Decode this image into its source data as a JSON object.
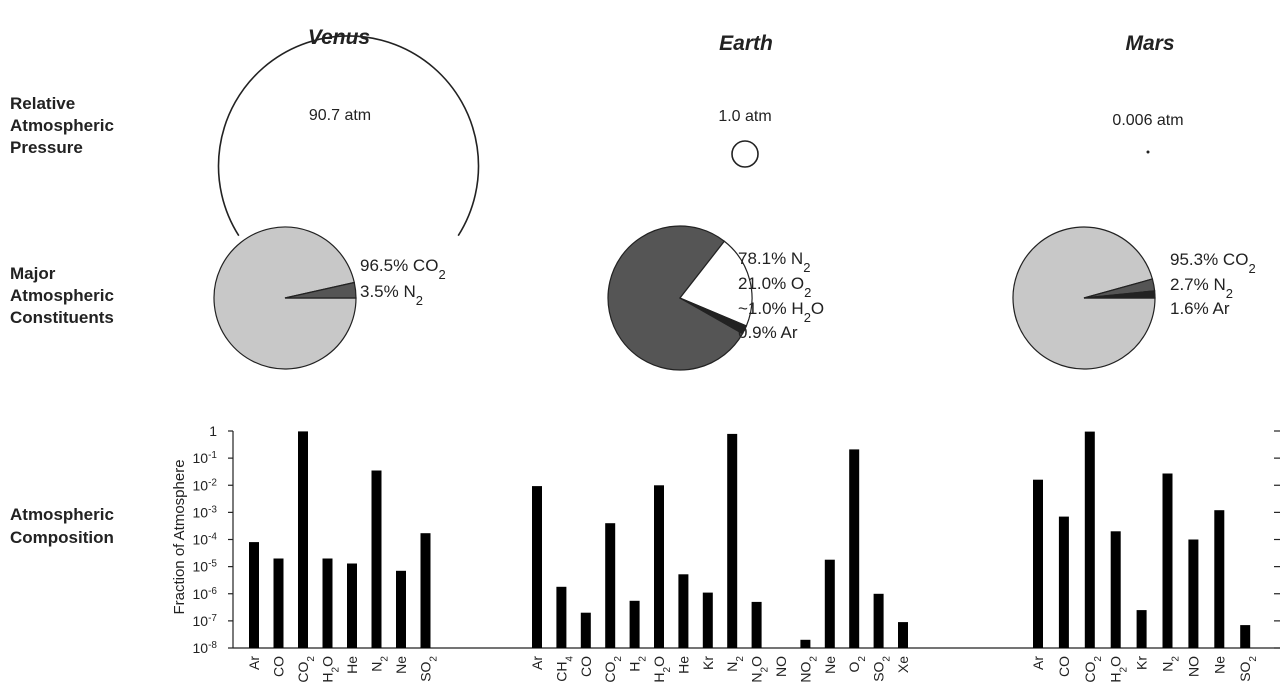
{
  "row_labels": {
    "pressure": [
      "Relative",
      "Atmospheric",
      "Pressure"
    ],
    "constituents": [
      "Major",
      "Atmospheric",
      "Constituents"
    ],
    "composition": [
      "Atmospheric",
      "Composition"
    ]
  },
  "ylabel": "Fraction of Atmosphere",
  "ytick_labels": [
    {
      "base": "1",
      "exp": ""
    },
    {
      "base": "10",
      "exp": "-1"
    },
    {
      "base": "10",
      "exp": "-2"
    },
    {
      "base": "10",
      "exp": "-3"
    },
    {
      "base": "10",
      "exp": "-4"
    },
    {
      "base": "10",
      "exp": "-5"
    },
    {
      "base": "10",
      "exp": "-6"
    },
    {
      "base": "10",
      "exp": "-7"
    },
    {
      "base": "10",
      "exp": "-8"
    }
  ],
  "colors": {
    "co2": "#c8c8c8",
    "n2": "#555555",
    "o2": "#ffffff",
    "minor": "#222222",
    "bar": "#000000"
  },
  "chart_data": [
    {
      "type": "pie",
      "planet": "Venus",
      "pressure_label": "90.7 atm",
      "pressure_atm": 90.7,
      "slices": [
        {
          "name": "CO2",
          "value": 96.5,
          "label": [
            {
              "t": "96.5% CO"
            },
            {
              "t": "2",
              "sub": true
            }
          ]
        },
        {
          "name": "N2",
          "value": 3.5,
          "label": [
            {
              "t": "3.5% N"
            },
            {
              "t": "2",
              "sub": true
            }
          ]
        }
      ]
    },
    {
      "type": "pie",
      "planet": "Earth",
      "pressure_label": "1.0 atm",
      "pressure_atm": 1.0,
      "slices": [
        {
          "name": "N2",
          "value": 78.1,
          "label": [
            {
              "t": "78.1% N"
            },
            {
              "t": "2",
              "sub": true
            }
          ]
        },
        {
          "name": "O2",
          "value": 21.0,
          "label": [
            {
              "t": "21.0% O"
            },
            {
              "t": "2",
              "sub": true
            }
          ]
        },
        {
          "name": "H2O",
          "value": 1.0,
          "label": [
            {
              "t": "~1.0% H"
            },
            {
              "t": "2",
              "sub": true
            },
            {
              "t": "O"
            }
          ]
        },
        {
          "name": "Ar",
          "value": 0.9,
          "label": [
            {
              "t": "0.9% Ar"
            }
          ]
        }
      ]
    },
    {
      "type": "pie",
      "planet": "Mars",
      "pressure_label": "0.006 atm",
      "pressure_atm": 0.006,
      "slices": [
        {
          "name": "CO2",
          "value": 95.3,
          "label": [
            {
              "t": "95.3% CO"
            },
            {
              "t": "2",
              "sub": true
            }
          ]
        },
        {
          "name": "N2",
          "value": 2.7,
          "label": [
            {
              "t": "2.7% N"
            },
            {
              "t": "2",
              "sub": true
            }
          ]
        },
        {
          "name": "Ar",
          "value": 1.6,
          "label": [
            {
              "t": "1.6% Ar"
            }
          ]
        }
      ]
    },
    {
      "type": "bar",
      "yscale": "log",
      "ylim": [
        1e-08,
        1
      ],
      "groups": [
        {
          "planet": "Venus",
          "bars": [
            {
              "label": [
                {
                  "t": "Ar"
                }
              ],
              "value": 8e-05
            },
            {
              "label": [
                {
                  "t": "CO"
                }
              ],
              "value": 2e-05
            },
            {
              "label": [
                {
                  "t": "CO"
                },
                {
                  "t": "2",
                  "sub": true
                }
              ],
              "value": 0.965
            },
            {
              "label": [
                {
                  "t": "H"
                },
                {
                  "t": "2",
                  "sub": true
                },
                {
                  "t": "O"
                }
              ],
              "value": 2e-05
            },
            {
              "label": [
                {
                  "t": "He"
                }
              ],
              "value": 1.3e-05
            },
            {
              "label": [
                {
                  "t": "N"
                },
                {
                  "t": "2",
                  "sub": true
                }
              ],
              "value": 0.035
            },
            {
              "label": [
                {
                  "t": "Ne"
                }
              ],
              "value": 7e-06
            },
            {
              "label": [
                {
                  "t": "SO"
                },
                {
                  "t": "2",
                  "sub": true
                }
              ],
              "value": 0.00017
            }
          ]
        },
        {
          "planet": "Earth",
          "bars": [
            {
              "label": [
                {
                  "t": "Ar"
                }
              ],
              "value": 0.0093
            },
            {
              "label": [
                {
                  "t": "CH"
                },
                {
                  "t": "4",
                  "sub": true
                }
              ],
              "value": 1.8e-06
            },
            {
              "label": [
                {
                  "t": "CO"
                }
              ],
              "value": 2e-07
            },
            {
              "label": [
                {
                  "t": "CO"
                },
                {
                  "t": "2",
                  "sub": true
                }
              ],
              "value": 0.0004
            },
            {
              "label": [
                {
                  "t": "H"
                },
                {
                  "t": "2",
                  "sub": true
                }
              ],
              "value": 5.5e-07
            },
            {
              "label": [
                {
                  "t": "H"
                },
                {
                  "t": "2",
                  "sub": true
                },
                {
                  "t": "O"
                }
              ],
              "value": 0.01
            },
            {
              "label": [
                {
                  "t": "He"
                }
              ],
              "value": 5.2e-06
            },
            {
              "label": [
                {
                  "t": "Kr"
                }
              ],
              "value": 1.1e-06
            },
            {
              "label": [
                {
                  "t": "N"
                },
                {
                  "t": "2",
                  "sub": true
                }
              ],
              "value": 0.781
            },
            {
              "label": [
                {
                  "t": "N"
                },
                {
                  "t": "2",
                  "sub": true
                },
                {
                  "t": "O"
                }
              ],
              "value": 5e-07
            },
            {
              "label": [
                {
                  "t": "NO"
                }
              ],
              "value": null
            },
            {
              "label": [
                {
                  "t": "NO"
                },
                {
                  "t": "2",
                  "sub": true
                }
              ],
              "value": 2e-08
            },
            {
              "label": [
                {
                  "t": "Ne"
                }
              ],
              "value": 1.8e-05
            },
            {
              "label": [
                {
                  "t": "O"
                },
                {
                  "t": "2",
                  "sub": true
                }
              ],
              "value": 0.21
            },
            {
              "label": [
                {
                  "t": "SO"
                },
                {
                  "t": "2",
                  "sub": true
                }
              ],
              "value": 1e-06
            },
            {
              "label": [
                {
                  "t": "Xe"
                }
              ],
              "value": 9e-08
            }
          ]
        },
        {
          "planet": "Mars",
          "bars": [
            {
              "label": [
                {
                  "t": "Ar"
                }
              ],
              "value": 0.016
            },
            {
              "label": [
                {
                  "t": "CO"
                }
              ],
              "value": 0.0007
            },
            {
              "label": [
                {
                  "t": "CO"
                },
                {
                  "t": "2",
                  "sub": true
                }
              ],
              "value": 0.953
            },
            {
              "label": [
                {
                  "t": "H"
                },
                {
                  "t": "2",
                  "sub": true
                },
                {
                  "t": "O"
                }
              ],
              "value": 0.0002
            },
            {
              "label": [
                {
                  "t": "Kr"
                }
              ],
              "value": 2.5e-07
            },
            {
              "label": [
                {
                  "t": "N"
                },
                {
                  "t": "2",
                  "sub": true
                }
              ],
              "value": 0.027
            },
            {
              "label": [
                {
                  "t": "NO"
                }
              ],
              "value": 0.0001
            },
            {
              "label": [
                {
                  "t": "Ne"
                }
              ],
              "value": 0.0012
            },
            {
              "label": [
                {
                  "t": "SO"
                },
                {
                  "t": "2",
                  "sub": true
                }
              ],
              "value": 7e-08
            }
          ]
        }
      ]
    }
  ]
}
